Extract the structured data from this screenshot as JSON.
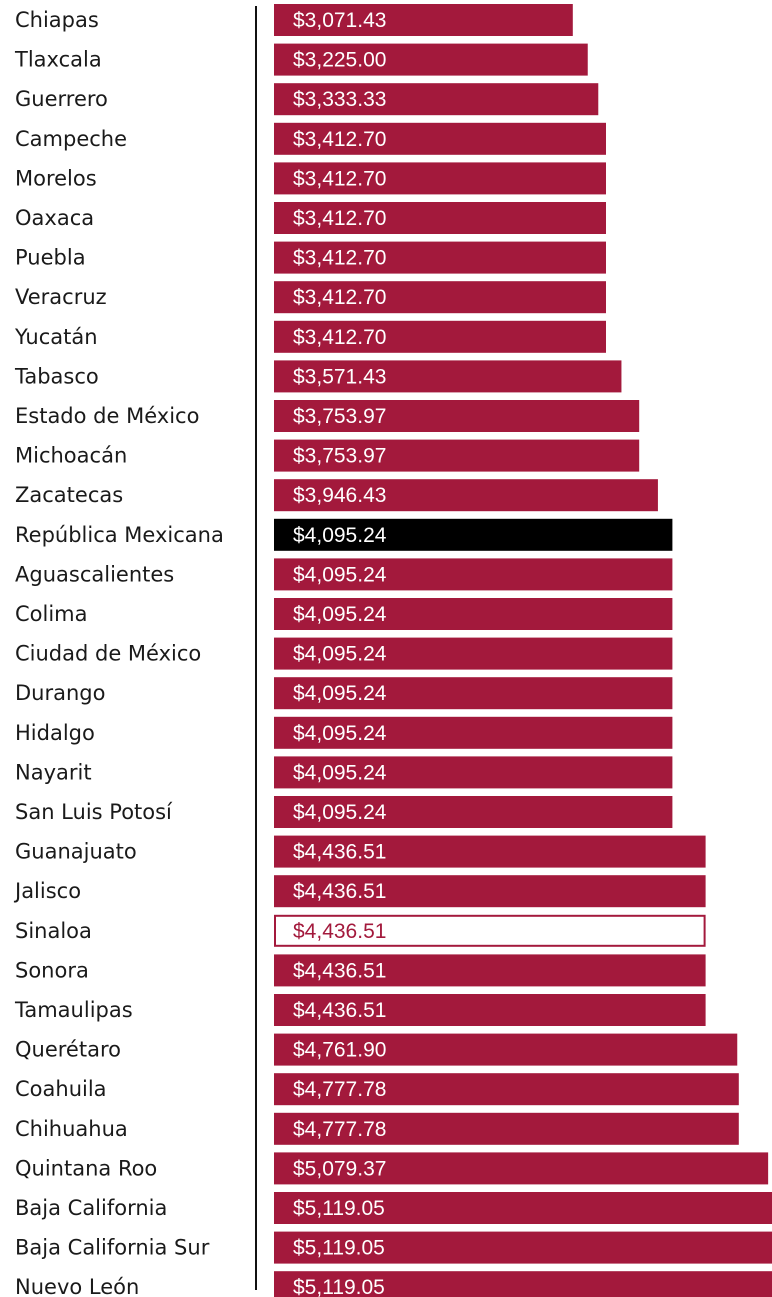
{
  "colors": {
    "bar": "#a3193c",
    "highlight_national": "#000000",
    "highlight_outline": "#a3193c",
    "axis": "#111111",
    "label_text": "#1a1a1a",
    "value_text_on_bar": "#ffffff"
  },
  "chart_data": {
    "type": "bar",
    "orientation": "horizontal",
    "title": "",
    "xlabel": "",
    "ylabel": "",
    "xlim": [
      0,
      5119.05
    ],
    "grid": false,
    "legend": "none",
    "categories": [
      "Chiapas",
      "Tlaxcala",
      "Guerrero",
      "Campeche",
      "Morelos",
      "Oaxaca",
      "Puebla",
      "Veracruz",
      "Yucatán",
      "Tabasco",
      "Estado de México",
      "Michoacán",
      "Zacatecas",
      "República Mexicana",
      "Aguascalientes",
      "Colima",
      "Ciudad de México",
      "Durango",
      "Hidalgo",
      "Nayarit",
      "San Luis Potosí",
      "Guanajuato",
      "Jalisco",
      "Sinaloa",
      "Sonora",
      "Tamaulipas",
      "Querétaro",
      "Coahuila",
      "Chihuahua",
      "Quintana Roo",
      "Baja California",
      "Baja California Sur",
      "Nuevo León"
    ],
    "values": [
      3071.43,
      3225.0,
      3333.33,
      3412.7,
      3412.7,
      3412.7,
      3412.7,
      3412.7,
      3412.7,
      3571.43,
      3753.97,
      3753.97,
      3946.43,
      4095.24,
      4095.24,
      4095.24,
      4095.24,
      4095.24,
      4095.24,
      4095.24,
      4095.24,
      4436.51,
      4436.51,
      4436.51,
      4436.51,
      4436.51,
      4761.9,
      4777.78,
      4777.78,
      5079.37,
      5119.05,
      5119.05,
      5119.05
    ],
    "value_labels": [
      "$3,071.43",
      "$3,225.00",
      "$3,333.33",
      "$3,412.70",
      "$3,412.70",
      "$3,412.70",
      "$3,412.70",
      "$3,412.70",
      "$3,412.70",
      "$3,571.43",
      "$3,753.97",
      "$3,753.97",
      "$3,946.43",
      "$4,095.24",
      "$4,095.24",
      "$4,095.24",
      "$4,095.24",
      "$4,095.24",
      "$4,095.24",
      "$4,095.24",
      "$4,095.24",
      "$4,436.51",
      "$4,436.51",
      "$4,436.51",
      "$4,436.51",
      "$4,436.51",
      "$4,761.90",
      "$4,777.78",
      "$4,777.78",
      "$5,079.37",
      "$5,119.05",
      "$5,119.05",
      "$5,119.05"
    ],
    "highlight": {
      "República Mexicana": "filled-black",
      "Sinaloa": "outline"
    }
  }
}
